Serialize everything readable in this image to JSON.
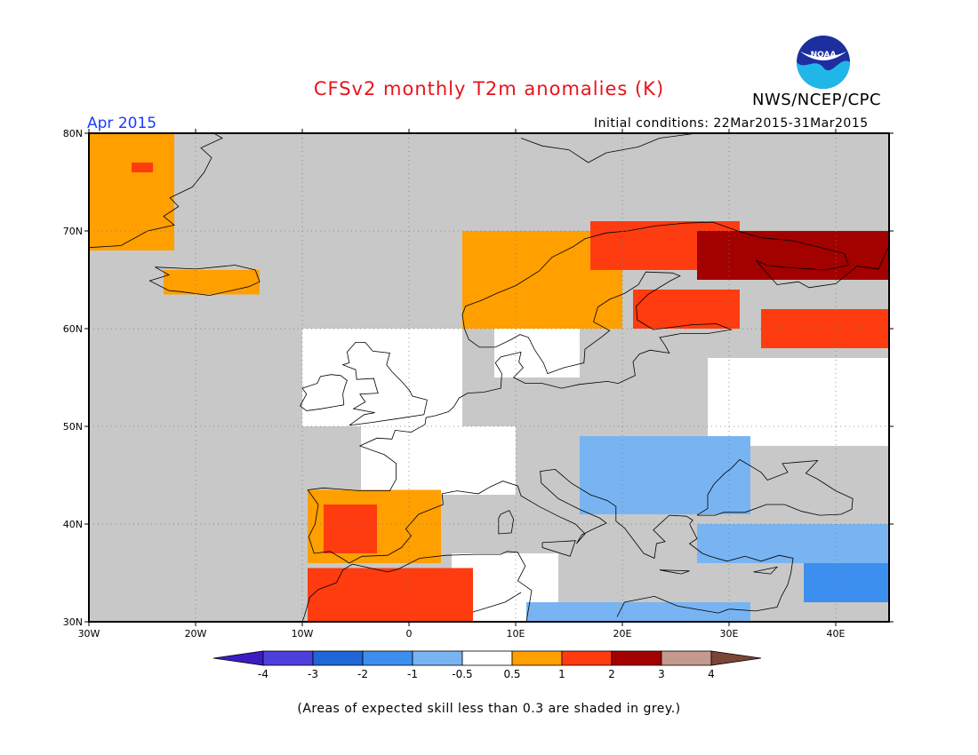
{
  "header": {
    "title": "CFSv2 monthly T2m anomalies (K)",
    "org": "NWS/NCEP/CPC",
    "logo_text": "NOAA",
    "period": "Apr 2015",
    "initial_conditions": "Initial conditions: 22Mar2015-31Mar2015"
  },
  "map": {
    "lon_range": [
      -30,
      45
    ],
    "lat_range": [
      30,
      80
    ],
    "lon_ticks": [
      "30W",
      "20W",
      "10W",
      "0",
      "10E",
      "20E",
      "30E",
      "40E"
    ],
    "lat_ticks": [
      "30N",
      "40N",
      "50N",
      "60N",
      "70N",
      "80N"
    ],
    "low_skill_color": "#c8c8c8",
    "coast_color": "#000000",
    "anomaly_regions": [
      {
        "name": "Greenland",
        "class": 0.75,
        "lon": [
          -30,
          -22
        ],
        "lat": [
          68,
          80
        ]
      },
      {
        "name": "Greenland core",
        "class": 1.5,
        "lon": [
          -26,
          -24
        ],
        "lat": [
          76,
          77
        ]
      },
      {
        "name": "Iceland",
        "class": 0.75,
        "lon": [
          -23,
          -14
        ],
        "lat": [
          63.5,
          66
        ]
      },
      {
        "name": "Iberia",
        "class": 0.75,
        "lon": [
          -9.5,
          3
        ],
        "lat": [
          36,
          43.5
        ]
      },
      {
        "name": "Iberia core",
        "class": 1.5,
        "lon": [
          -8,
          -3
        ],
        "lat": [
          37,
          42
        ]
      },
      {
        "name": "NW Africa",
        "class": 1.5,
        "lon": [
          -9.5,
          6
        ],
        "lat": [
          30,
          35.5
        ]
      },
      {
        "name": "Scandinavia",
        "class": 0.75,
        "lon": [
          5,
          20
        ],
        "lat": [
          60,
          70
        ]
      },
      {
        "name": "Lapland",
        "class": 1.5,
        "lon": [
          17,
          31
        ],
        "lat": [
          66,
          71
        ]
      },
      {
        "name": "NW Russia",
        "class": 2.5,
        "lon": [
          27,
          45
        ],
        "lat": [
          65,
          70
        ]
      },
      {
        "name": "Finland",
        "class": 1.5,
        "lon": [
          21,
          31
        ],
        "lat": [
          60,
          64
        ]
      },
      {
        "name": "Central Russia",
        "class": 1.5,
        "lon": [
          33,
          45
        ],
        "lat": [
          58,
          62
        ]
      },
      {
        "name": "Balkans",
        "class": -0.75,
        "lon": [
          16,
          32
        ],
        "lat": [
          41,
          49
        ]
      },
      {
        "name": "Turkey",
        "class": -0.75,
        "lon": [
          27,
          45
        ],
        "lat": [
          36,
          40
        ]
      },
      {
        "name": "Levant",
        "class": -1.5,
        "lon": [
          37,
          45
        ],
        "lat": [
          32,
          36
        ]
      },
      {
        "name": "Libya",
        "class": -0.75,
        "lon": [
          11,
          32
        ],
        "lat": [
          30,
          32
        ]
      }
    ],
    "white_regions": [
      {
        "lon": [
          -4.5,
          10
        ],
        "lat": [
          43,
          50
        ]
      },
      {
        "lon": [
          -10,
          5
        ],
        "lat": [
          50,
          60
        ]
      },
      {
        "lon": [
          8,
          16
        ],
        "lat": [
          55,
          62
        ]
      },
      {
        "lon": [
          28,
          45
        ],
        "lat": [
          48,
          57
        ]
      },
      {
        "lon": [
          4,
          14
        ],
        "lat": [
          30,
          37
        ]
      }
    ]
  },
  "colorbar": {
    "labels": [
      "-4",
      "-3",
      "-2",
      "-1",
      "-0.5",
      "0.5",
      "1",
      "2",
      "3",
      "4"
    ],
    "colors": [
      "#3c1dc4",
      "#4d3fdc",
      "#1f66d8",
      "#3d8fef",
      "#78b4f2",
      "#ffffff",
      "#ff9f00",
      "#ff3b10",
      "#a30000",
      "#c49a8e",
      "#7a4636"
    ]
  },
  "footnote": "(Areas of expected skill less than 0.3 are shaded in grey.)"
}
